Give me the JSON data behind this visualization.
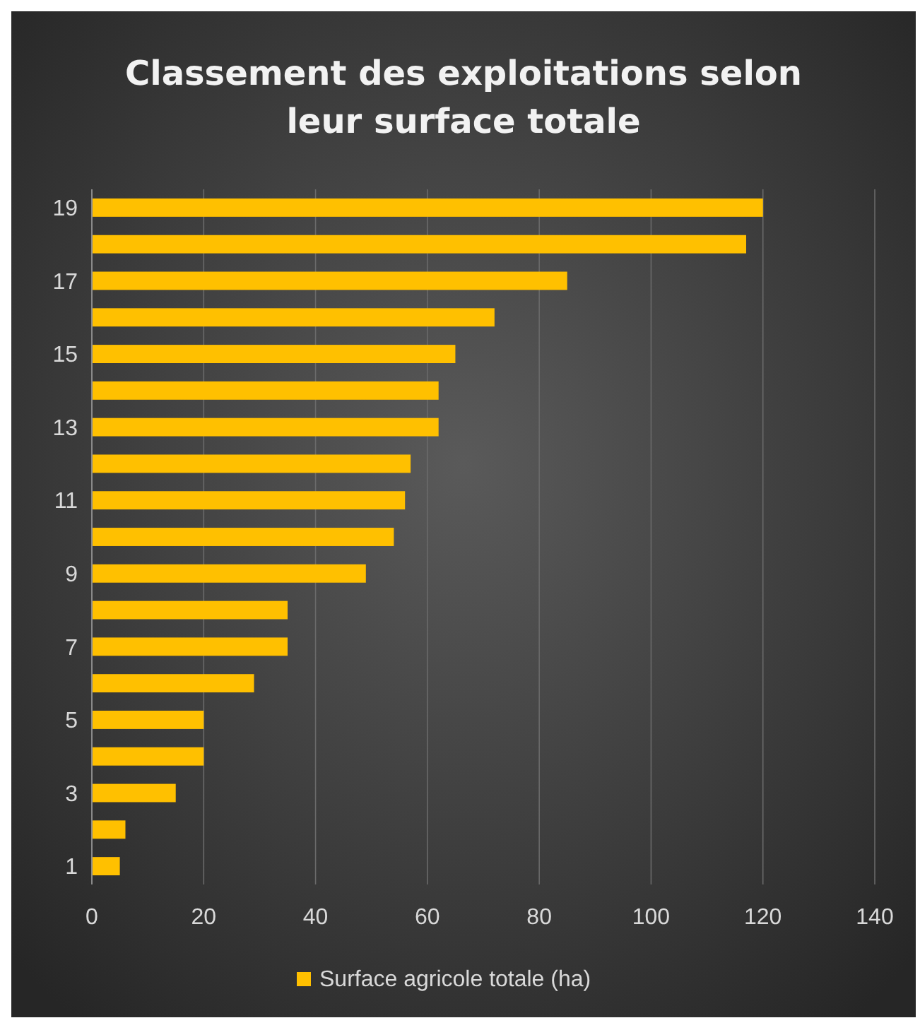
{
  "chart_data": {
    "type": "bar",
    "orientation": "horizontal",
    "title": "Classement des exploitations selon leur surface totale",
    "categories": [
      "19",
      null,
      "17",
      null,
      "15",
      null,
      "13",
      null,
      "11",
      null,
      "9",
      null,
      "7",
      null,
      "5",
      null,
      "3",
      null,
      "1"
    ],
    "series": [
      {
        "name": "Surface agricole totale (ha)",
        "color": "#ffc000",
        "values": [
          120,
          117,
          85,
          72,
          65,
          62,
          62,
          57,
          56,
          54,
          49,
          35,
          35,
          29,
          20,
          20,
          15,
          6,
          5
        ]
      }
    ],
    "xlim": [
      0,
      140
    ],
    "xticks": [
      0,
      20,
      40,
      60,
      80,
      100,
      120,
      140
    ],
    "grid": "x",
    "legend": "bottom"
  }
}
